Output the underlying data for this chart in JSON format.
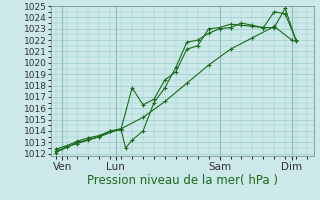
{
  "title": "",
  "xlabel": "Pression niveau de la mer( hPa )",
  "bg_color": "#cce8e8",
  "line_color": "#1a6b1a",
  "grid_color": "#99cccc",
  "ylim": [
    1011.8,
    1025.0
  ],
  "xlim": [
    -0.2,
    11.8
  ],
  "xtick_positions": [
    0.3,
    2.75,
    7.5,
    10.8
  ],
  "xtick_labels": [
    "Ven",
    "Lun",
    "Sam",
    "Dim"
  ],
  "ytick_values": [
    1012,
    1013,
    1014,
    1015,
    1016,
    1017,
    1018,
    1019,
    1020,
    1021,
    1022,
    1023,
    1024
  ],
  "series1_x": [
    0.0,
    0.5,
    1.0,
    1.5,
    2.0,
    2.5,
    3.0,
    3.5,
    4.0,
    4.5,
    5.0,
    5.5,
    6.0,
    6.5,
    7.0,
    7.5,
    8.0,
    8.5,
    9.0,
    9.5,
    10.0,
    10.5,
    11.0
  ],
  "series1_y": [
    1012.2,
    1012.6,
    1012.9,
    1013.2,
    1013.5,
    1014.0,
    1014.2,
    1017.8,
    1016.3,
    1016.8,
    1018.5,
    1019.2,
    1021.2,
    1021.5,
    1023.0,
    1023.1,
    1023.4,
    1023.3,
    1023.2,
    1023.1,
    1024.5,
    1024.3,
    1022.0
  ],
  "series2_x": [
    0.0,
    0.5,
    1.0,
    1.5,
    2.0,
    2.5,
    3.0,
    3.2,
    3.5,
    4.0,
    4.5,
    5.0,
    5.5,
    6.0,
    6.5,
    7.0,
    7.5,
    8.0,
    8.5,
    9.0,
    9.5,
    10.0,
    10.5,
    11.0
  ],
  "series2_y": [
    1012.4,
    1012.7,
    1013.1,
    1013.4,
    1013.6,
    1014.0,
    1014.1,
    1012.5,
    1013.2,
    1014.0,
    1016.5,
    1017.8,
    1019.6,
    1021.8,
    1022.0,
    1022.6,
    1023.0,
    1023.1,
    1023.5,
    1023.3,
    1023.1,
    1023.1,
    1024.8,
    1021.9
  ],
  "series3_x": [
    0.0,
    1.0,
    2.0,
    3.0,
    4.0,
    5.0,
    6.0,
    7.0,
    8.0,
    9.0,
    10.0,
    10.8
  ],
  "series3_y": [
    1012.1,
    1013.0,
    1013.5,
    1014.2,
    1015.2,
    1016.6,
    1018.2,
    1019.8,
    1021.2,
    1022.2,
    1023.2,
    1022.0
  ],
  "vline_positions": [
    0.3,
    2.75,
    7.5,
    10.8
  ],
  "xlabel_fontsize": 8.5,
  "ytick_fontsize": 6.5,
  "xtick_fontsize": 7.5
}
